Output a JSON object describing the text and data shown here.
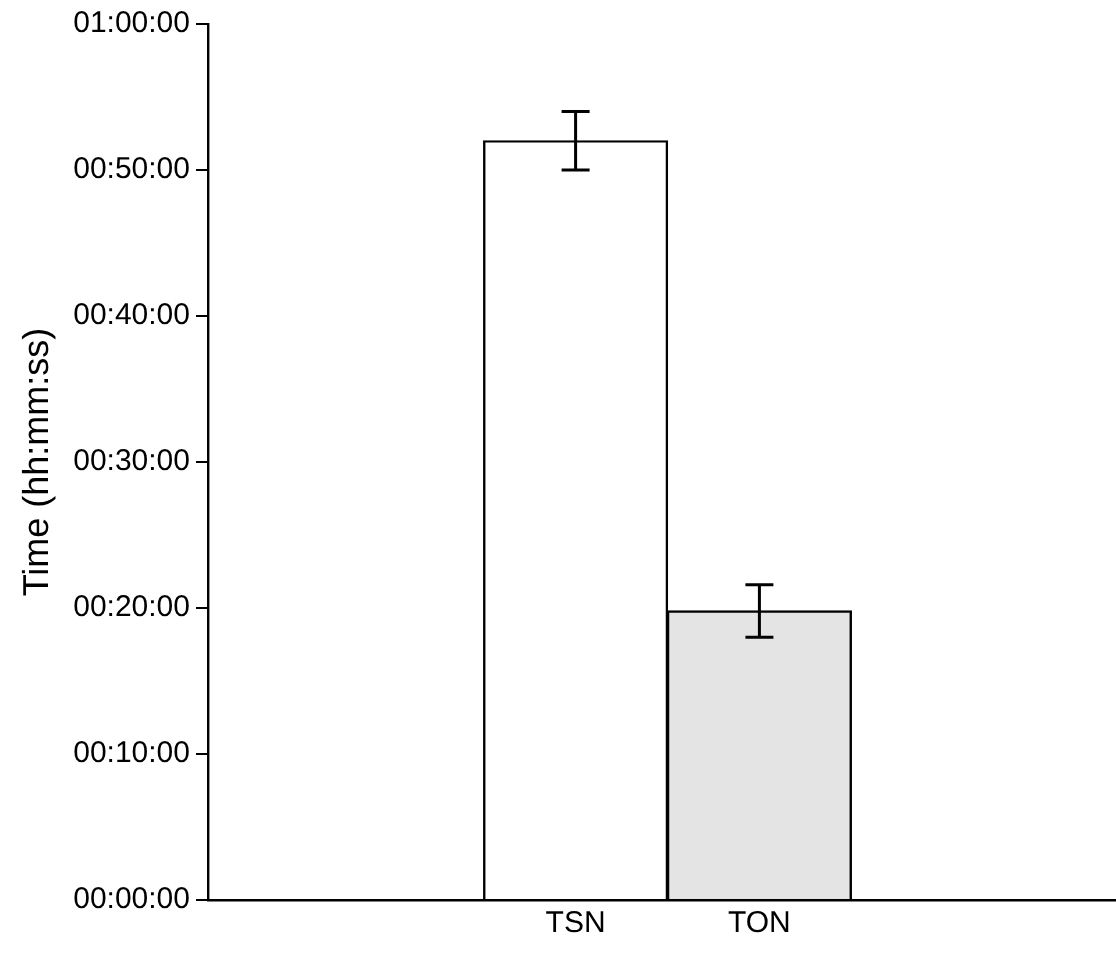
{
  "chart_data": {
    "type": "bar",
    "ylabel": "Time (hh:mm:ss)",
    "categories": [
      "TSN",
      "TON"
    ],
    "values": [
      52,
      19.8
    ],
    "errors": [
      2,
      1.8
    ],
    "colors": [
      "#ffffff",
      "#e4e4e4"
    ],
    "ylim": [
      0,
      60
    ],
    "yticks": [
      {
        "value": 0,
        "label": "00:00:00"
      },
      {
        "value": 10,
        "label": "00:10:00"
      },
      {
        "value": 20,
        "label": "00:20:00"
      },
      {
        "value": 30,
        "label": "00:30:00"
      },
      {
        "value": 40,
        "label": "00:40:00"
      },
      {
        "value": 50,
        "label": "00:50:00"
      },
      {
        "value": 60,
        "label": "01:00:00"
      }
    ],
    "grid": false,
    "legend": false
  }
}
